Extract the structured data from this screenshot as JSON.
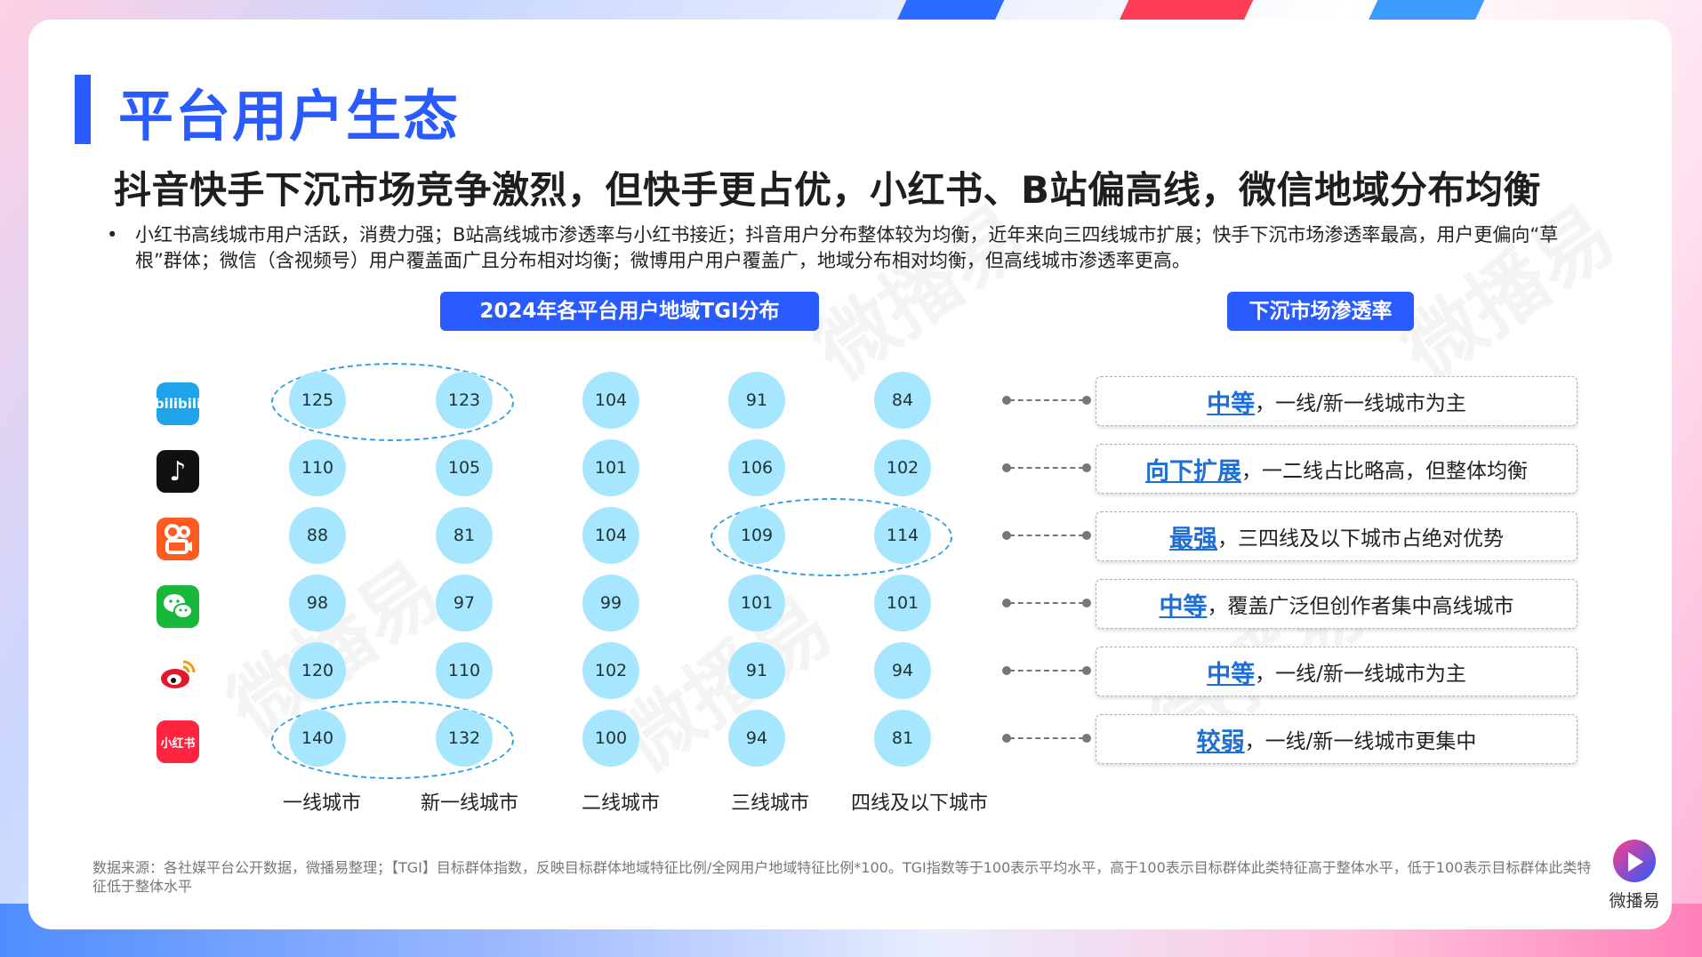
{
  "page": {
    "title": "平台用户生态",
    "headline": "抖音快手下沉市场竞争激烈，但快手更占优，小红书、B站偏高线，微信地域分布均衡",
    "bullet": "小红书高线城市用户活跃，消费力强；B站高线城市渗透率与小红书接近；抖音用户分布整体较为均衡，近年来向三四线城市扩展；快手下沉市场渗透率最高，用户更偏向“草根”群体；微信（含视频号）用户覆盖面广且分布相对均衡；微博用户用户覆盖广，地域分布相对均衡，但高线城市渗透率更高。",
    "left_pill": "2024年各平台用户地域TGI分布",
    "right_pill": "下沉市场渗透率",
    "footnote": "数据来源：各社媒平台公开数据，微播易整理；【TGI】目标群体指数，反映目标群体地域特征比例/全网用户地域特征比例*100。TGI指数等于100表示平均水平，高于100表示目标群体此类特征高于整体水平，低于100表示目标群体此类特征低于整体水平",
    "watermark": "微播易",
    "logo_text": "微播易"
  },
  "icons": {
    "bilibili": {
      "name": "bilibili-icon",
      "text": "bilibili"
    },
    "douyin": {
      "name": "douyin-icon",
      "text": "♪"
    },
    "kuaishou": {
      "name": "kuaishou-icon"
    },
    "weixin": {
      "name": "wechat-icon"
    },
    "weibo": {
      "name": "weibo-icon"
    },
    "xiaohongshu": {
      "name": "xiaohongshu-icon",
      "text": "小红书"
    }
  },
  "chart_data": {
    "type": "table",
    "title": "2024年各平台用户地域TGI分布",
    "columns": [
      "一线城市",
      "新一线城市",
      "二线城市",
      "三线城市",
      "四线及以下城市"
    ],
    "rows": [
      {
        "platform_icon": "bilibili-icon",
        "values": [
          125,
          123,
          104,
          91,
          84
        ]
      },
      {
        "platform_icon": "douyin-icon",
        "values": [
          110,
          105,
          101,
          106,
          102
        ]
      },
      {
        "platform_icon": "kuaishou-icon",
        "values": [
          88,
          81,
          104,
          109,
          114
        ]
      },
      {
        "platform_icon": "wechat-icon",
        "values": [
          98,
          97,
          99,
          101,
          101
        ]
      },
      {
        "platform_icon": "weibo-icon",
        "values": [
          120,
          110,
          102,
          91,
          94
        ]
      },
      {
        "platform_icon": "xiaohongshu-icon",
        "values": [
          140,
          132,
          100,
          94,
          81
        ]
      }
    ],
    "highlights": [
      {
        "row": 0,
        "cols": [
          0,
          1
        ]
      },
      {
        "row": 2,
        "cols": [
          3,
          4
        ]
      },
      {
        "row": 5,
        "cols": [
          0,
          1
        ]
      }
    ],
    "bubble_color": "#a6e7ff",
    "highlight_color": "#2c9fe6"
  },
  "penetration": {
    "title": "下沉市场渗透率",
    "items": [
      {
        "level": "中等",
        "desc": "，一线/新一线城市为主"
      },
      {
        "level": "向下扩展",
        "desc": "，一二线占比略高，但整体均衡"
      },
      {
        "level": "最强",
        "desc": "，三四线及以下城市占绝对优势"
      },
      {
        "level": "中等",
        "desc": "，覆盖广泛但创作者集中高线城市"
      },
      {
        "level": "中等",
        "desc": "，一线/新一线城市为主"
      },
      {
        "level": "较弱",
        "desc": "，一线/新一线城市更集中"
      }
    ]
  },
  "colors": {
    "accent": "#2a5bff",
    "level_text": "#1d6fd6",
    "bubble": "#a6e7ff"
  }
}
